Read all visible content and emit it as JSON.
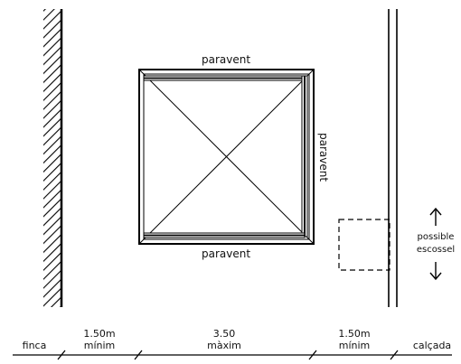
{
  "plan": {
    "labels": {
      "top": "paravent",
      "right": "paravent",
      "bottom": "paravent",
      "scaffold_line1": "possible",
      "scaffold_line2": "escossel"
    },
    "dimensions": [
      {
        "kind": "zone",
        "line1": "finca"
      },
      {
        "kind": "span",
        "line1": "1.50m",
        "line2": "mínim"
      },
      {
        "kind": "span",
        "line1": "3.50",
        "line2": "màxim"
      },
      {
        "kind": "span",
        "line1": "1.50m",
        "line2": "mínim"
      },
      {
        "kind": "zone",
        "line1": "calçada"
      }
    ]
  }
}
